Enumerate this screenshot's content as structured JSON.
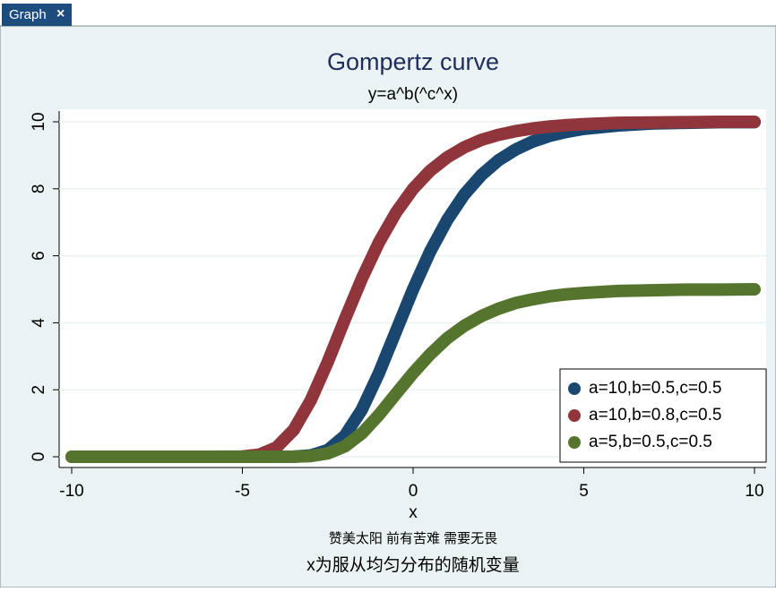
{
  "tab": {
    "label": "Graph",
    "close": "×"
  },
  "chart_data": {
    "type": "line",
    "title": "Gompertz curve",
    "subtitle": "y=a^b(^c^x)",
    "x_label": "x",
    "note": "赞美太阳 前有苦难 需要无畏",
    "caption": "x为服从均匀分布的随机变量",
    "x": [
      -10,
      -9,
      -8,
      -7,
      -6,
      -5,
      -4.5,
      -4,
      -3.5,
      -3,
      -2.5,
      -2,
      -1.5,
      -1,
      -0.5,
      0,
      0.5,
      1,
      1.5,
      2,
      2.5,
      3,
      3.5,
      4,
      4.5,
      5,
      6,
      7,
      8,
      9,
      10
    ],
    "series": [
      {
        "name": "a=10,b=0.5,c=0.5",
        "color": "#1a476f",
        "values": [
          0,
          0,
          0,
          0,
          0,
          0,
          0,
          0.0002,
          0.004,
          0.039,
          0.198,
          0.625,
          1.41,
          2.5,
          3.75,
          5,
          6.13,
          7.07,
          7.83,
          8.41,
          8.85,
          9.17,
          9.41,
          9.58,
          9.7,
          9.79,
          9.89,
          9.95,
          9.97,
          9.99,
          9.99
        ]
      },
      {
        "name": "a=10,b=0.8,c=0.5",
        "color": "#90353b",
        "values": [
          0,
          0,
          0,
          0,
          0,
          0.008,
          0.064,
          0.28,
          0.8,
          1.68,
          2.83,
          4.1,
          5.32,
          6.4,
          7.29,
          8,
          8.54,
          8.94,
          9.24,
          9.46,
          9.61,
          9.72,
          9.8,
          9.86,
          9.9,
          9.93,
          9.97,
          9.98,
          9.99,
          10,
          10
        ]
      },
      {
        "name": "a=5,b=0.5,c=0.5",
        "color": "#55752f",
        "values": [
          0,
          0,
          0,
          0,
          0,
          0,
          0,
          0.0001,
          0.002,
          0.02,
          0.1,
          0.31,
          0.7,
          1.25,
          1.88,
          2.5,
          3.06,
          3.54,
          3.91,
          4.2,
          4.42,
          4.59,
          4.7,
          4.79,
          4.85,
          4.89,
          4.95,
          4.97,
          4.99,
          4.99,
          5
        ]
      }
    ],
    "xlim": [
      -10,
      10
    ],
    "xticks": [
      -10,
      -5,
      0,
      5,
      10
    ],
    "ylim": [
      0,
      10
    ],
    "yticks": [
      0,
      2,
      4,
      6,
      8,
      10
    ],
    "grid": true,
    "legend_position": "lower-right"
  }
}
